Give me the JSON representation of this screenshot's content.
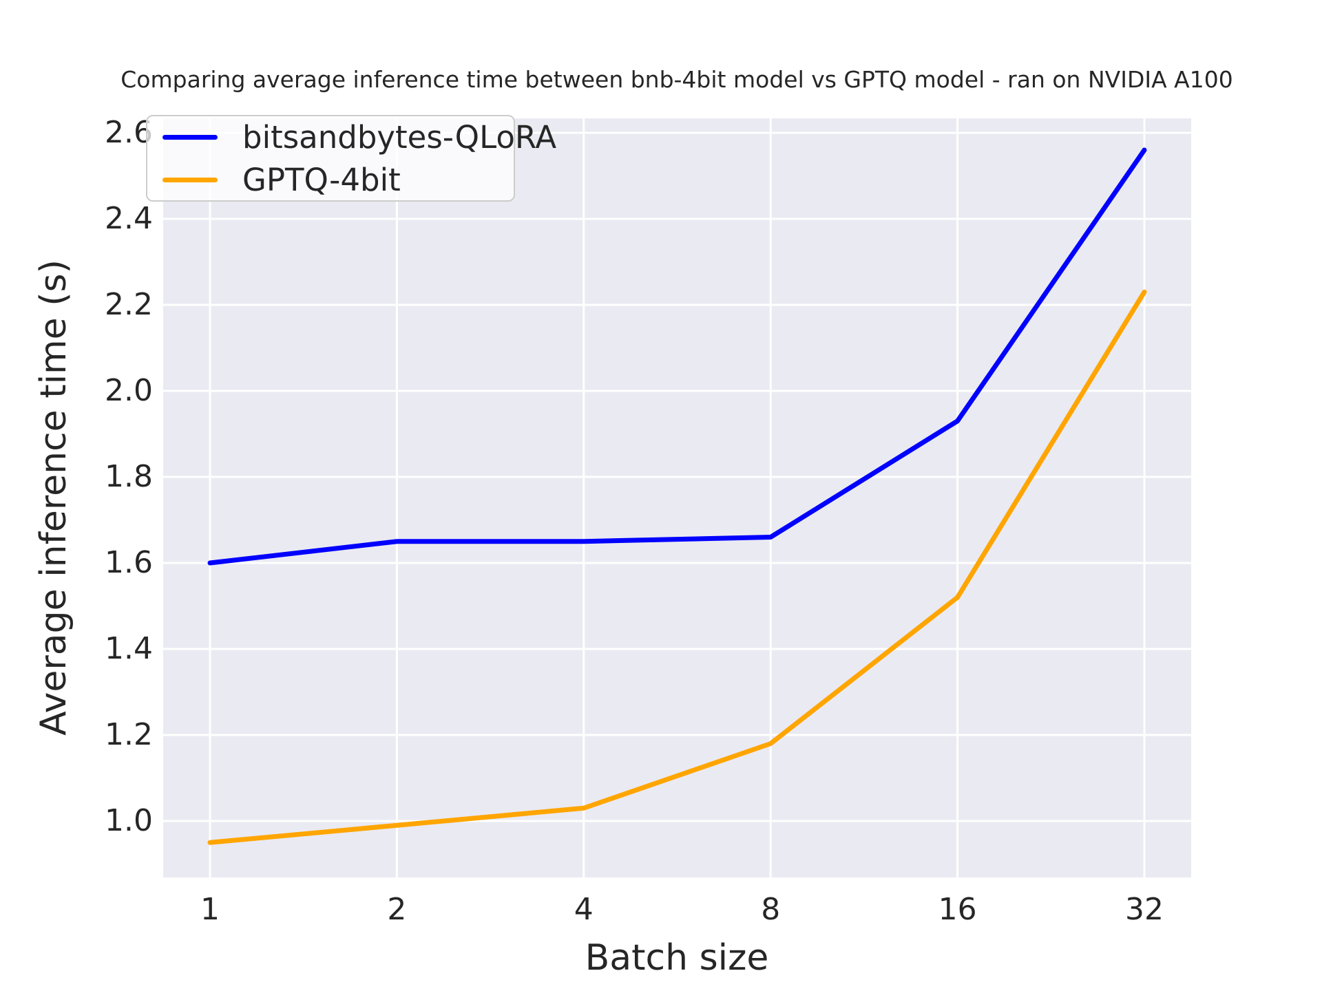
{
  "title": "Comparing average inference time between bnb-4bit model vs GPTQ model - ran on NVIDIA A100",
  "chart_data": {
    "type": "line",
    "title": "Comparing average inference time between bnb-4bit model vs GPTQ model - ran on NVIDIA A100",
    "xlabel": "Batch size",
    "ylabel": "Average inference time (s)",
    "categories": [
      "1",
      "2",
      "4",
      "8",
      "16",
      "32"
    ],
    "x_scale": "log2-equal-spacing",
    "series": [
      {
        "name": "bitsandbytes-QLoRA",
        "color": "#0000ff",
        "values": [
          1.6,
          1.65,
          1.65,
          1.66,
          1.93,
          2.56
        ]
      },
      {
        "name": "GPTQ-4bit",
        "color": "#ffa500",
        "values": [
          0.95,
          0.99,
          1.03,
          1.18,
          1.52,
          2.23
        ]
      }
    ],
    "yticks": [
      2.6,
      2.4,
      2.2,
      2.0,
      1.8,
      1.6,
      1.4,
      1.2,
      1.0
    ],
    "ytick_labels": [
      "2.6",
      "2.4",
      "2.2",
      "2.0",
      "1.8",
      "1.6",
      "1.4",
      "1.2",
      "1.0"
    ],
    "ylim": [
      0.87,
      2.63
    ],
    "grid": true,
    "legend_position": "upper left",
    "colors": {
      "axes_bg": "#eaeaf2",
      "grid": "#ffffff",
      "text": "#262626"
    }
  }
}
